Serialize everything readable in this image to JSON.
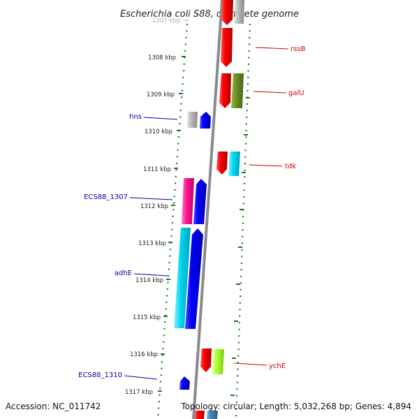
{
  "title": "Escherichia coli S88, complete genome",
  "accession": "Accession: NC_011742",
  "topology": "Topology: circular; Length: 5,032,268 bp; Genes: 4,894",
  "colors": {
    "backbone": "#8a8a8a",
    "dotted_track": "#1a7a1a",
    "tick_mark": "#1a7a1a",
    "left_label": "#0000aa",
    "right_label": "#cc0000"
  },
  "ticks": [
    {
      "label": "1307 kbp",
      "faded": true
    },
    {
      "label": "1308 kbp"
    },
    {
      "label": "1309 kbp"
    },
    {
      "label": "1310 kbp"
    },
    {
      "label": "1311 kbp"
    },
    {
      "label": "1312 kbp"
    },
    {
      "label": "1313 kbp"
    },
    {
      "label": "1314 kbp"
    },
    {
      "label": "1315 kbp"
    },
    {
      "label": "1316 kbp"
    },
    {
      "label": "1317 kbp"
    }
  ],
  "gene_labels_left": [
    {
      "name": "hns",
      "color": "#0000aa"
    },
    {
      "name": "ECS88_1307",
      "color": "#0000aa"
    },
    {
      "name": "adhE",
      "color": "#0000aa"
    },
    {
      "name": "ECS88_1310",
      "color": "#0000aa"
    }
  ],
  "gene_labels_right": [
    {
      "name": "rssB",
      "color": "#cc0000"
    },
    {
      "name": "galU",
      "color": "#cc0000"
    },
    {
      "name": "tdk",
      "color": "#cc0000"
    },
    {
      "name": "ychE",
      "color": "#cc0000"
    }
  ]
}
